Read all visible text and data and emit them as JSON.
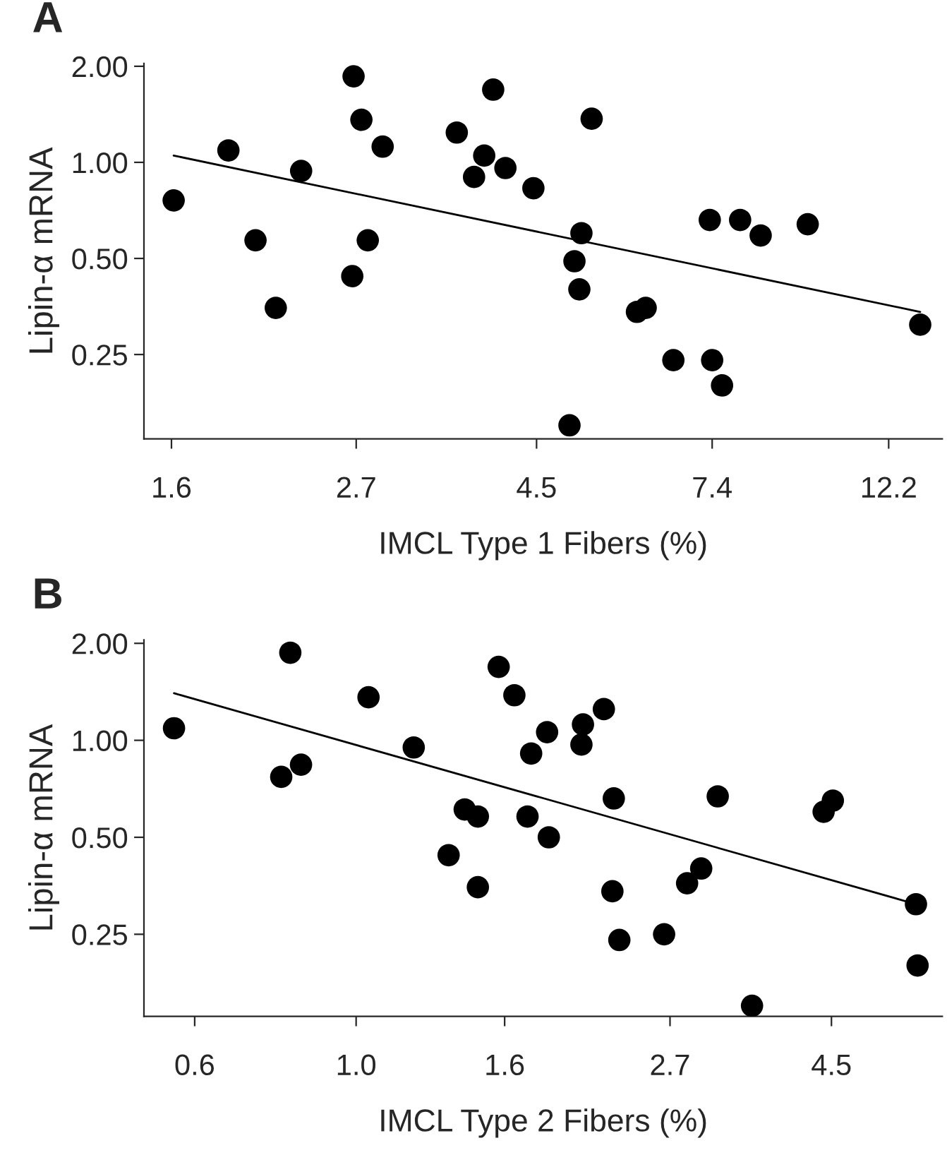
{
  "chart_data": [
    {
      "type": "scatter",
      "title": "A",
      "xlabel": "IMCL Type 1 Fibers (%)",
      "ylabel": "Lipin-α mRNA",
      "log": "xy",
      "grid": false,
      "legend": false,
      "marker": "circle",
      "xlim": [
        1.48,
        14.2
      ],
      "ylim": [
        0.136,
        2.04
      ],
      "xticks": [
        1.6,
        2.7,
        4.5,
        7.4,
        12.2
      ],
      "yticks": [
        {
          "value": 0.25,
          "label": "0.25"
        },
        {
          "value": 0.5,
          "label": "0.50"
        },
        {
          "value": 1,
          "label": "1.00"
        },
        {
          "value": 2,
          "label": "2.00"
        }
      ],
      "series": [
        {
          "color": "#000000",
          "x": [
            1.61,
            1.88,
            2.03,
            2.15,
            2.31,
            2.67,
            2.68,
            2.74,
            2.79,
            2.91,
            3.59,
            3.77,
            3.88,
            3.98,
            4.12,
            4.46,
            4.94,
            5.01,
            5.08,
            5.11,
            5.26,
            5.98,
            6.13,
            6.63,
            7.35,
            7.4,
            7.61,
            8.01,
            8.49,
            9.7,
            13.34
          ],
          "values": [
            0.76,
            1.09,
            0.57,
            0.35,
            0.94,
            0.44,
            1.86,
            1.36,
            0.57,
            1.12,
            1.24,
            0.9,
            1.05,
            1.69,
            0.96,
            0.83,
            0.15,
            0.49,
            0.4,
            0.6,
            1.37,
            0.34,
            0.35,
            0.24,
            0.66,
            0.24,
            0.2,
            0.66,
            0.59,
            0.64,
            0.31
          ]
        },
        {
          "type": "line",
          "color": "#000000",
          "marker": "none",
          "line_style": "solid",
          "x": [
            1.61,
            13.34
          ],
          "values": [
            1.05,
            0.34
          ]
        }
      ]
    },
    {
      "type": "scatter",
      "title": "B",
      "xlabel": "IMCL Type 2 Fibers (%)",
      "ylabel": "Lipin-α mRNA",
      "log": "xy",
      "grid": false,
      "legend": false,
      "marker": "circle",
      "xlim": [
        0.511,
        6.39
      ],
      "ylim": [
        0.139,
        2.05
      ],
      "xticks": [
        0.6,
        {
          "value": 1,
          "label": "1.0"
        },
        1.6,
        2.7,
        4.5
      ],
      "yticks": [
        {
          "value": 0.25,
          "label": "0.25"
        },
        {
          "value": 0.5,
          "label": "0.50"
        },
        {
          "value": 1,
          "label": "1.00"
        },
        {
          "value": 2,
          "label": "2.00"
        }
      ],
      "series": [
        {
          "color": "#000000",
          "x": [
            0.562,
            0.789,
            0.812,
            0.84,
            1.04,
            1.2,
            1.34,
            1.41,
            1.47,
            1.47,
            1.57,
            1.65,
            1.72,
            1.74,
            1.83,
            1.84,
            2.04,
            2.05,
            2.19,
            2.25,
            2.26,
            2.3,
            2.65,
            2.85,
            2.98,
            3.14,
            3.5,
            4.39,
            4.52,
            5.88,
            5.91
          ],
          "values": [
            1.09,
            0.77,
            1.87,
            0.84,
            1.36,
            0.95,
            0.44,
            0.61,
            0.58,
            0.35,
            1.69,
            1.38,
            0.58,
            0.91,
            1.06,
            0.5,
            0.97,
            1.12,
            1.25,
            0.34,
            0.66,
            0.24,
            0.25,
            0.36,
            0.4,
            0.67,
            0.15,
            0.6,
            0.65,
            0.31,
            0.2
          ]
        },
        {
          "type": "line",
          "color": "#000000",
          "marker": "none",
          "line_style": "solid",
          "x": [
            0.562,
            5.88
          ],
          "values": [
            1.4,
            0.31
          ]
        }
      ]
    }
  ]
}
